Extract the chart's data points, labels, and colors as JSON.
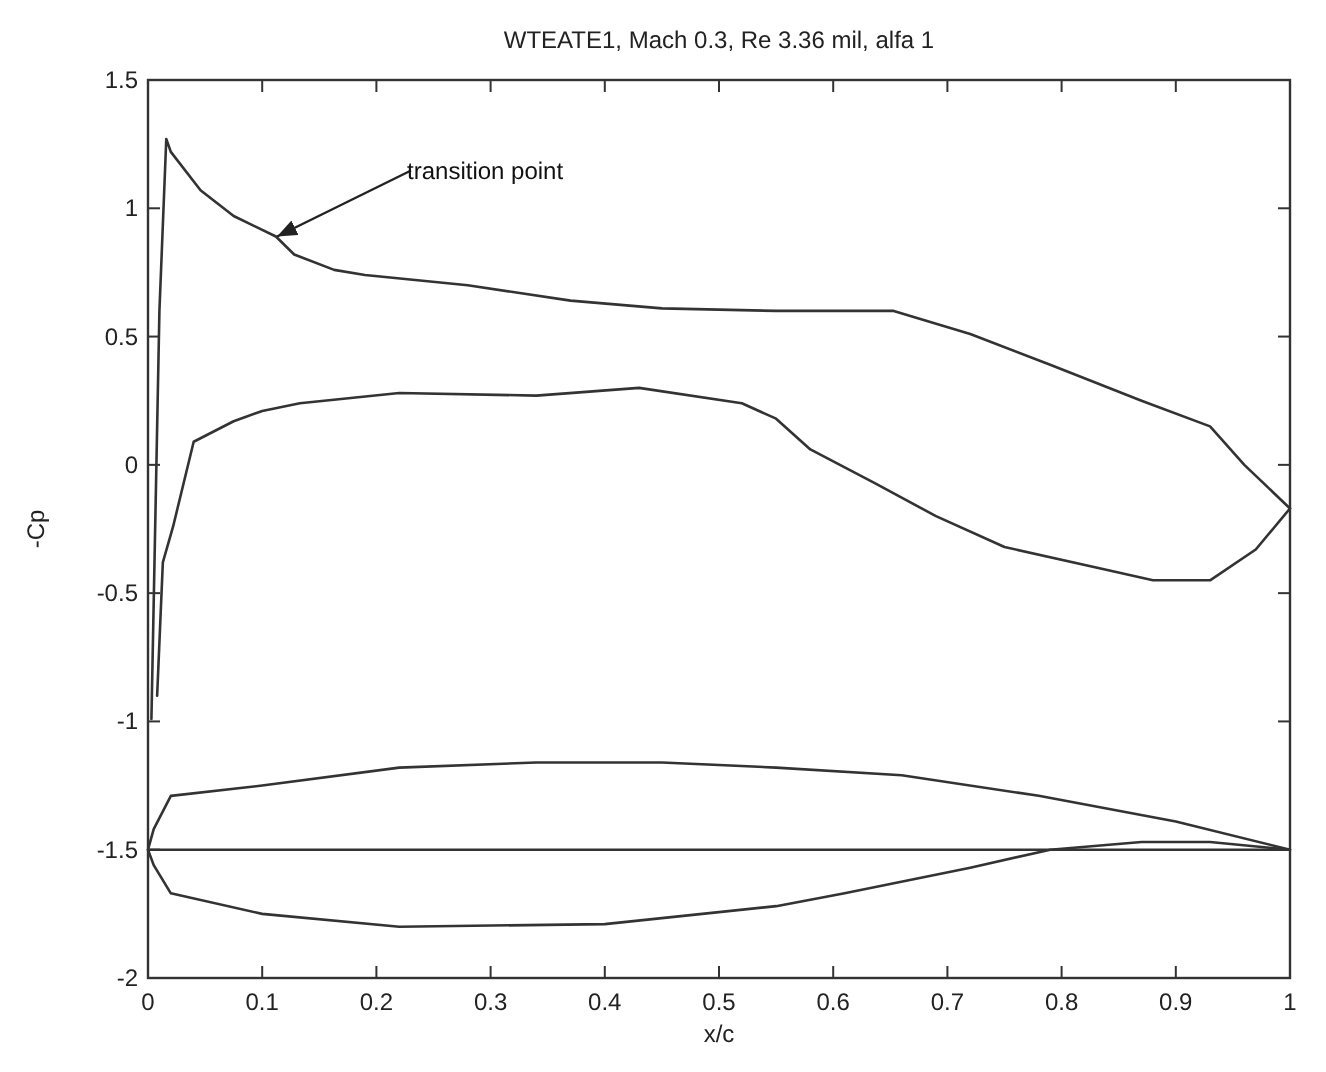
{
  "chart_data": {
    "type": "line",
    "title": "WTEATE1, Mach 0.3, Re 3.36 mil, alfa 1",
    "xlabel": "x/c",
    "ylabel": "-Cp",
    "xlim": [
      0,
      1
    ],
    "ylim": [
      -2,
      1.5
    ],
    "xticks": [
      0,
      0.1,
      0.2,
      0.3,
      0.4,
      0.5,
      0.6,
      0.7,
      0.8,
      0.9,
      1
    ],
    "yticks": [
      -2,
      -1.5,
      -1,
      -0.5,
      0,
      0.5,
      1,
      1.5
    ],
    "grid": false,
    "marker": "none",
    "line_style": "solid",
    "series": [
      {
        "color": "#333333",
        "x": [
          0.003,
          0.01,
          0.016,
          0.02,
          0.046,
          0.075,
          0.112,
          0.128,
          0.163,
          0.19,
          0.28,
          0.37,
          0.45,
          0.55,
          0.653,
          0.72,
          0.79,
          0.87,
          0.93,
          0.96,
          1.0
        ],
        "values": [
          -0.99,
          0.6,
          1.27,
          1.22,
          1.07,
          0.97,
          0.89,
          0.82,
          0.76,
          0.74,
          0.7,
          0.64,
          0.61,
          0.6,
          0.6,
          0.51,
          0.39,
          0.25,
          0.15,
          0.0,
          -0.17
        ]
      },
      {
        "color": "#333333",
        "x": [
          0.008,
          0.013,
          0.022,
          0.04,
          0.075,
          0.1,
          0.133,
          0.22,
          0.34,
          0.43,
          0.52,
          0.55,
          0.58,
          0.636,
          0.69,
          0.75,
          0.84,
          0.88,
          0.93,
          0.97,
          1.0
        ],
        "values": [
          -0.9,
          -0.38,
          -0.24,
          0.09,
          0.17,
          0.21,
          0.24,
          0.28,
          0.27,
          0.3,
          0.24,
          0.18,
          0.06,
          -0.07,
          -0.2,
          -0.32,
          -0.41,
          -0.45,
          -0.45,
          -0.33,
          -0.17
        ]
      },
      {
        "color": "#333333",
        "x": [
          0,
          0.005,
          0.02,
          0.1,
          0.22,
          0.34,
          0.45,
          0.55,
          0.66,
          0.78,
          0.9,
          1.0
        ],
        "values": [
          -1.5,
          -1.42,
          -1.29,
          -1.25,
          -1.18,
          -1.16,
          -1.16,
          -1.18,
          -1.21,
          -1.29,
          -1.39,
          -1.5
        ]
      },
      {
        "color": "#333333",
        "x": [
          0,
          0.005,
          0.02,
          0.1,
          0.22,
          0.4,
          0.55,
          0.61,
          0.72,
          0.79,
          0.87,
          0.93,
          1.0
        ],
        "values": [
          -1.5,
          -1.56,
          -1.67,
          -1.75,
          -1.8,
          -1.79,
          -1.72,
          -1.67,
          -1.57,
          -1.5,
          -1.47,
          -1.47,
          -1.5
        ]
      }
    ],
    "ref_lines": [
      {
        "axis": "y",
        "value": -1.5,
        "color": "#333333"
      }
    ],
    "annotations": [
      {
        "text": "transition point",
        "x": 0.113,
        "y": 0.89
      }
    ]
  }
}
